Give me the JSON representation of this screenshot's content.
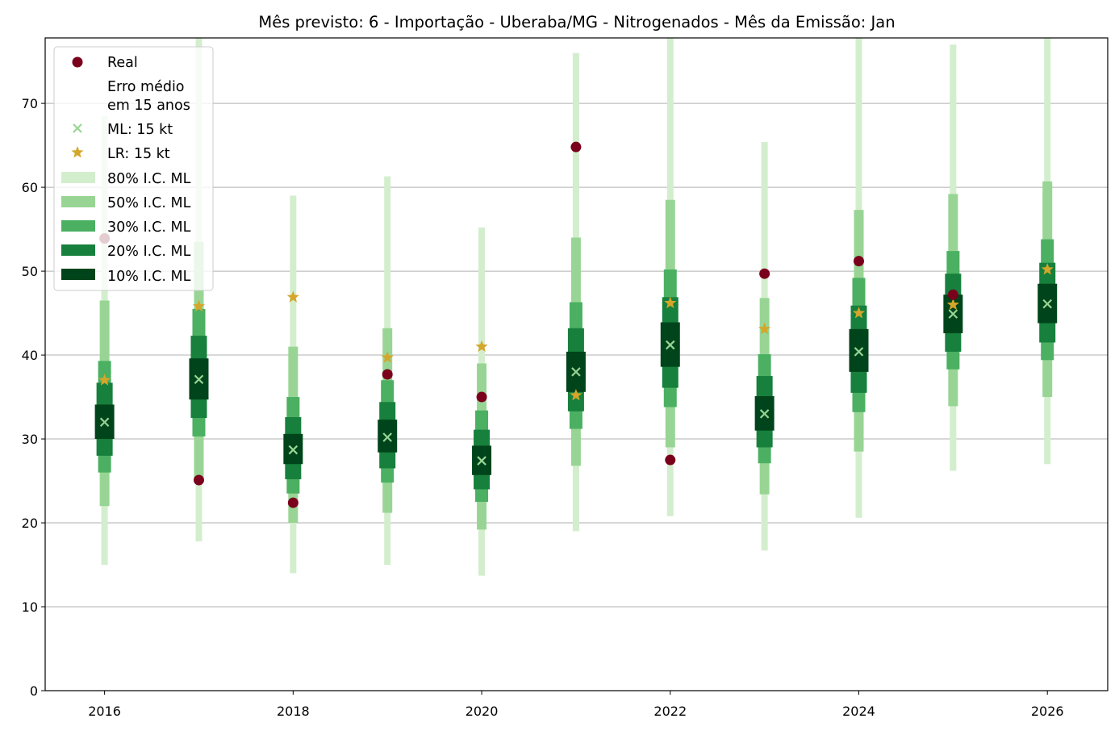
{
  "chart_data": {
    "type": "interval",
    "title": "Mês previsto: 6 - Importação - Uberaba/MG - Nitrogenados - Mês da Emissão: Jan",
    "xlabel": "",
    "ylabel": "",
    "xlim": [
      2015.37,
      2026.64
    ],
    "ylim": [
      0,
      77.8
    ],
    "grid": "y",
    "legend_placement": "top-left",
    "x_ticks": [
      "2016",
      "2018",
      "2020",
      "2022",
      "2024",
      "2026"
    ],
    "y_ticks": [
      "0",
      "10",
      "20",
      "30",
      "40",
      "50",
      "60",
      "70"
    ],
    "legend": {
      "real": "Real",
      "erro": "Erro médio",
      "erro2": "em 15 anos",
      "ml": "ML: 15 kt",
      "lr": "LR: 15 kt",
      "ci80": "80% I.C. ML",
      "ci50": "50% I.C. ML",
      "ci30": "30% I.C. ML",
      "ci20": "20% I.C. ML",
      "ci10": "10% I.C. ML"
    },
    "colors": {
      "ci80": "#d3eecd",
      "ci50": "#98d594",
      "ci30": "#4bb062",
      "ci20": "#16803c",
      "ci10": "#00441b",
      "real": "#7a001c",
      "ml": "#98d594",
      "lr": "#d4a62a"
    },
    "x": [
      2016,
      2017,
      2018,
      2019,
      2020,
      2021,
      2022,
      2023,
      2024,
      2025,
      2026
    ],
    "ci80": [
      [
        15,
        68.5
      ],
      [
        17.8,
        80
      ],
      [
        14,
        59
      ],
      [
        15,
        61.3
      ],
      [
        13.7,
        55.2
      ],
      [
        19,
        76
      ],
      [
        20.8,
        80
      ],
      [
        16.7,
        65.4
      ],
      [
        20.6,
        80
      ],
      [
        26.2,
        77
      ],
      [
        27,
        80
      ]
    ],
    "ci50": [
      [
        22,
        46.5
      ],
      [
        25,
        53.5
      ],
      [
        20,
        41
      ],
      [
        21.2,
        43.2
      ],
      [
        19.2,
        39
      ],
      [
        26.8,
        54
      ],
      [
        29,
        58.5
      ],
      [
        23.4,
        46.8
      ],
      [
        28.5,
        57.3
      ],
      [
        33.9,
        59.2
      ],
      [
        35,
        60.7
      ]
    ],
    "ci30": [
      [
        26,
        39.3
      ],
      [
        30.3,
        45.5
      ],
      [
        23.5,
        35
      ],
      [
        24.8,
        37
      ],
      [
        22.5,
        33.4
      ],
      [
        31.2,
        46.3
      ],
      [
        33.8,
        50.2
      ],
      [
        27.1,
        40.1
      ],
      [
        33.2,
        49.2
      ],
      [
        38.3,
        52.4
      ],
      [
        39.4,
        53.8
      ]
    ],
    "ci20": [
      [
        28,
        36.7
      ],
      [
        32.5,
        42.3
      ],
      [
        25.2,
        32.6
      ],
      [
        26.5,
        34.4
      ],
      [
        24,
        31.1
      ],
      [
        33.3,
        43.2
      ],
      [
        36.1,
        46.9
      ],
      [
        29,
        37.5
      ],
      [
        35.5,
        45.9
      ],
      [
        40.4,
        49.7
      ],
      [
        41.5,
        51
      ]
    ],
    "ci10": [
      [
        30,
        34.1
      ],
      [
        34.7,
        39.6
      ],
      [
        27,
        30.6
      ],
      [
        28.4,
        32.3
      ],
      [
        25.7,
        29.2
      ],
      [
        35.6,
        40.4
      ],
      [
        38.6,
        43.9
      ],
      [
        31,
        35.1
      ],
      [
        38,
        43.1
      ],
      [
        42.6,
        47.2
      ],
      [
        43.8,
        48.5
      ]
    ],
    "ml": [
      32,
      37.1,
      28.7,
      30.2,
      27.4,
      38,
      41.2,
      33,
      40.4,
      44.9,
      46.1
    ],
    "lr": [
      37,
      45.8,
      46.9,
      39.7,
      41,
      35.2,
      46.2,
      43.1,
      45,
      46,
      50.2
    ],
    "real": [
      53.9,
      25.1,
      22.4,
      37.7,
      35,
      64.8,
      27.5,
      49.7,
      51.2,
      47.2,
      null
    ]
  }
}
